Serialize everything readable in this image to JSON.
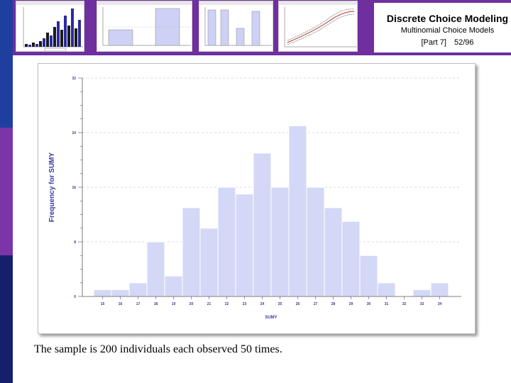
{
  "slide": {
    "title": "Discrete Choice Modeling",
    "subtitle": "Multinomial Choice Models",
    "part": "[Part 7]",
    "page": "52/96",
    "caption": "The sample is 200 individuals each observed 50 times."
  },
  "colors": {
    "banner": "#6f2f9f",
    "stripe_top": "#1f3fa0",
    "stripe_mid": "#7a35a8",
    "stripe_bottom": "#14206b",
    "bar_fill": "#d4d8f7",
    "bar_stroke": "#ffffff",
    "thumb_dark": "#1a1a1a",
    "thumb_blue": "#2a2aa0"
  },
  "icons": [
    "thumbnail-histogram-chart",
    "thumbnail-bar-chart",
    "thumbnail-bar-chart",
    "thumbnail-bar-chart",
    "thumbnail-line-chart"
  ],
  "chart_data": {
    "type": "bar",
    "ylabel": "Frequency for SUMY",
    "xlabel": "SUMY",
    "categories": [
      "15",
      "16",
      "17",
      "18",
      "19",
      "20",
      "21",
      "22",
      "23",
      "24",
      "25",
      "26",
      "27",
      "28",
      "29",
      "30",
      "31",
      "32",
      "33",
      "34"
    ],
    "values": [
      1,
      1,
      2,
      8,
      3,
      13,
      10,
      16,
      15,
      21,
      16,
      25,
      16,
      13,
      11,
      6,
      2,
      0,
      1,
      2
    ],
    "yticks": [
      0,
      8,
      16,
      24,
      32
    ],
    "ylim": [
      0,
      32
    ],
    "grid": true
  }
}
